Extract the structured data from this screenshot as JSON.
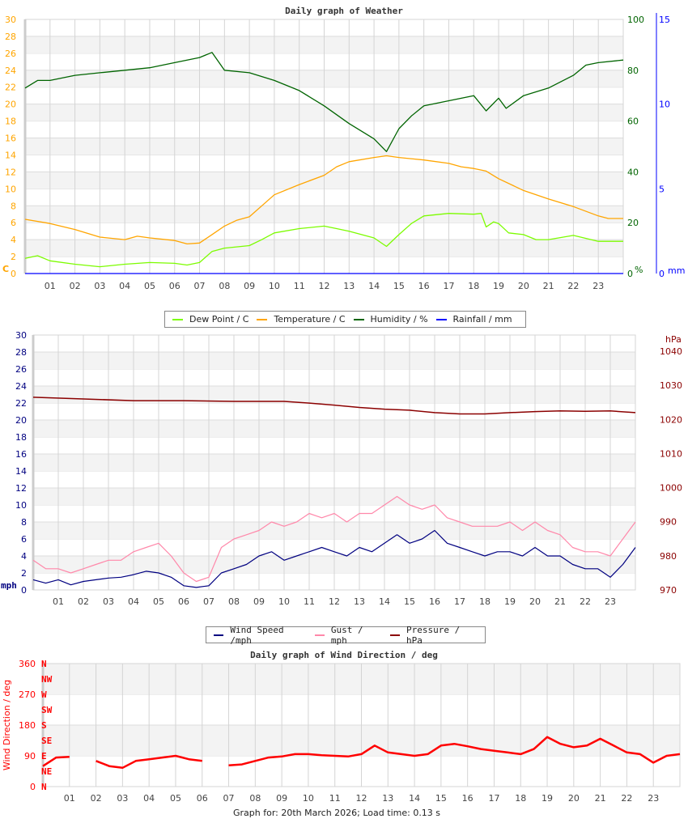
{
  "chart_data": [
    {
      "type": "line",
      "title": "Daily graph of Weather",
      "x_tick_labels": [
        "01",
        "02",
        "03",
        "04",
        "05",
        "06",
        "07",
        "08",
        "09",
        "10",
        "11",
        "12",
        "13",
        "14",
        "15",
        "16",
        "17",
        "18",
        "19",
        "20",
        "21",
        "22",
        "23"
      ],
      "xlim_hours": [
        0,
        24
      ],
      "grid": true,
      "legend_placement": "bottom",
      "axes": {
        "left": {
          "unit": "C",
          "ylim": [
            0,
            30
          ],
          "ticks": [
            0,
            2,
            4,
            6,
            8,
            10,
            12,
            14,
            16,
            18,
            20,
            22,
            24,
            26,
            28,
            30
          ],
          "color": "#ffa500"
        },
        "right1": {
          "unit": "%",
          "ylim": [
            0,
            100
          ],
          "ticks": [
            0,
            20,
            40,
            60,
            80,
            100
          ],
          "color": "#006400"
        },
        "right2": {
          "unit": "mm",
          "ylim": [
            0,
            15
          ],
          "ticks": [
            0,
            5,
            10,
            15
          ],
          "color": "#0000ff"
        }
      },
      "series": [
        {
          "name": "Dew Point / C",
          "axis": "left",
          "color": "#7cfc00",
          "x": [
            0,
            0.5,
            1,
            2,
            3,
            4,
            5,
            6,
            6.5,
            7,
            7.5,
            8,
            9,
            9.5,
            10,
            11,
            12,
            12.5,
            13,
            13.5,
            14,
            14.5,
            15,
            15.5,
            16,
            17,
            18,
            18.3,
            18.5,
            18.8,
            19,
            19.4,
            20,
            20.5,
            21,
            22,
            23,
            24
          ],
          "y": [
            1.8,
            2.1,
            1.5,
            1.1,
            0.8,
            1.1,
            1.3,
            1.2,
            1.0,
            1.3,
            2.6,
            3.0,
            3.3,
            4.0,
            4.8,
            5.3,
            5.6,
            5.3,
            5.0,
            4.6,
            4.2,
            3.2,
            4.6,
            5.9,
            6.8,
            7.1,
            7.0,
            7.1,
            5.5,
            6.1,
            5.9,
            4.8,
            4.6,
            4.0,
            4.0,
            4.5,
            3.8,
            3.8
          ]
        },
        {
          "name": "Temperature / C",
          "axis": "left",
          "color": "#ffa500",
          "x": [
            0,
            1,
            2,
            3,
            4,
            4.5,
            5,
            6,
            6.5,
            7,
            7.5,
            8,
            8.5,
            9,
            9.5,
            10,
            11,
            12,
            12.5,
            13,
            14,
            14.5,
            15,
            16,
            17,
            17.5,
            18,
            18.5,
            19,
            20,
            21,
            22,
            23,
            23.4,
            24
          ],
          "y": [
            6.4,
            5.9,
            5.2,
            4.3,
            4.0,
            4.4,
            4.2,
            3.9,
            3.5,
            3.6,
            4.6,
            5.6,
            6.3,
            6.7,
            8.0,
            9.3,
            10.5,
            11.6,
            12.6,
            13.2,
            13.7,
            13.9,
            13.7,
            13.4,
            13.0,
            12.6,
            12.4,
            12.1,
            11.2,
            9.8,
            8.8,
            7.9,
            6.8,
            6.5,
            6.5
          ]
        },
        {
          "name": "Humidity / %",
          "axis": "right1",
          "color": "#006400",
          "x": [
            0,
            0.5,
            1,
            2,
            3,
            4,
            5,
            6,
            7,
            7.5,
            8,
            9,
            10,
            11,
            12,
            13,
            14,
            14.5,
            15,
            15.5,
            16,
            17,
            18,
            18.5,
            19,
            19.3,
            20,
            21,
            22,
            22.5,
            23,
            24
          ],
          "y": [
            73,
            76,
            76,
            78,
            79,
            80,
            81,
            83,
            85,
            87,
            80,
            79,
            76,
            72,
            66,
            59,
            53,
            48,
            57,
            62,
            66,
            68,
            70,
            64,
            69,
            65,
            70,
            73,
            78,
            82,
            83,
            84
          ]
        },
        {
          "name": "Rainfall / mm",
          "axis": "right2",
          "color": "#0000ff",
          "x": [
            0,
            24
          ],
          "y": [
            0,
            0
          ]
        }
      ]
    },
    {
      "type": "line",
      "title": "",
      "x_tick_labels": [
        "01",
        "02",
        "03",
        "04",
        "05",
        "06",
        "07",
        "08",
        "09",
        "10",
        "11",
        "12",
        "13",
        "14",
        "15",
        "16",
        "17",
        "18",
        "19",
        "20",
        "21",
        "22",
        "23"
      ],
      "xlim_hours": [
        0,
        24
      ],
      "grid": true,
      "legend_placement": "bottom",
      "axes": {
        "left": {
          "unit": "mph",
          "ylim": [
            0,
            30
          ],
          "ticks": [
            0,
            2,
            4,
            6,
            8,
            10,
            12,
            14,
            16,
            18,
            20,
            22,
            24,
            26,
            28,
            30
          ],
          "color": "#000080"
        },
        "right": {
          "unit": "hPa",
          "ylim": [
            970,
            1040
          ],
          "ticks": [
            970,
            980,
            990,
            1000,
            1010,
            1020,
            1030,
            1040
          ],
          "color": "#8b0000"
        }
      },
      "series": [
        {
          "name": "Wind Speed /mph",
          "axis": "left",
          "color": "#000080",
          "x_step_hours": 0.5,
          "y": [
            1.2,
            0.8,
            1.2,
            0.6,
            1.0,
            1.2,
            1.4,
            1.5,
            1.8,
            2.2,
            2.0,
            1.5,
            0.5,
            0.3,
            0.5,
            2.0,
            2.5,
            3.0,
            4.0,
            4.5,
            3.5,
            4.0,
            4.5,
            5.0,
            4.5,
            4.0,
            5.0,
            4.5,
            5.5,
            6.5,
            5.5,
            6.0,
            7.0,
            5.5,
            5.0,
            4.5,
            4.0,
            4.5,
            4.5,
            4.0,
            5.0,
            4.0,
            4.0,
            3.0,
            2.5,
            2.5,
            1.5,
            3.0,
            5.0
          ]
        },
        {
          "name": "Gust / mph",
          "axis": "left",
          "color": "#ff88aa",
          "x_step_hours": 0.5,
          "y": [
            3.5,
            2.5,
            2.5,
            2,
            2.5,
            3,
            3.5,
            3.5,
            4.5,
            5,
            5.5,
            4,
            2,
            1,
            1.5,
            5,
            6,
            6.5,
            7,
            8,
            7.5,
            8,
            9,
            8.5,
            9,
            8,
            9,
            9,
            10,
            11,
            10,
            9.5,
            10,
            8.5,
            8,
            7.5,
            7.5,
            7.5,
            8,
            7,
            8,
            7,
            6.5,
            5,
            4.5,
            4.5,
            4,
            6,
            8
          ]
        },
        {
          "name": "Pressure / hPa",
          "axis": "right",
          "color": "#8b0000",
          "x": [
            0,
            2,
            4,
            6,
            8,
            10,
            11,
            12,
            13,
            14,
            15,
            16,
            17,
            18,
            19,
            20,
            21,
            22,
            23,
            24
          ],
          "y": [
            1026.5,
            1026,
            1025.5,
            1025.5,
            1025.3,
            1025.3,
            1024.8,
            1024.2,
            1023.5,
            1023,
            1022.7,
            1022.0,
            1021.6,
            1021.6,
            1022,
            1022.3,
            1022.5,
            1022.4,
            1022.5,
            1022.0
          ]
        }
      ]
    },
    {
      "type": "scatter",
      "title": "Daily graph of Wind Direction / deg",
      "ylabel": "Wind Direction / deg",
      "x_tick_labels": [
        "01",
        "02",
        "03",
        "04",
        "05",
        "06",
        "07",
        "08",
        "09",
        "10",
        "11",
        "12",
        "13",
        "14",
        "15",
        "16",
        "17",
        "18",
        "19",
        "20",
        "21",
        "22",
        "23"
      ],
      "xlim_hours": [
        0,
        24
      ],
      "ylim": [
        0,
        360
      ],
      "y_ticks": [
        0,
        90,
        180,
        270,
        360
      ],
      "compass_labels": [
        "N",
        "NE",
        "E",
        "SE",
        "S",
        "SW",
        "W",
        "NW",
        "N"
      ],
      "grid": true,
      "color": "#ff0000",
      "series": [
        {
          "name": "",
          "x_step_hours": 0.5,
          "y": [
            60,
            85,
            87,
            null,
            75,
            60,
            55,
            75,
            80,
            85,
            90,
            80,
            75,
            null,
            62,
            65,
            75,
            85,
            88,
            95,
            95,
            92,
            90,
            88,
            95,
            120,
            100,
            95,
            90,
            95,
            120,
            125,
            118,
            110,
            105,
            100,
            95,
            110,
            145,
            125,
            115,
            120,
            140,
            120,
            100,
            95,
            70,
            90,
            95
          ]
        }
      ]
    }
  ],
  "footer": {
    "text": "Graph for: 20th March 2026; Load time: 0.13 s"
  }
}
